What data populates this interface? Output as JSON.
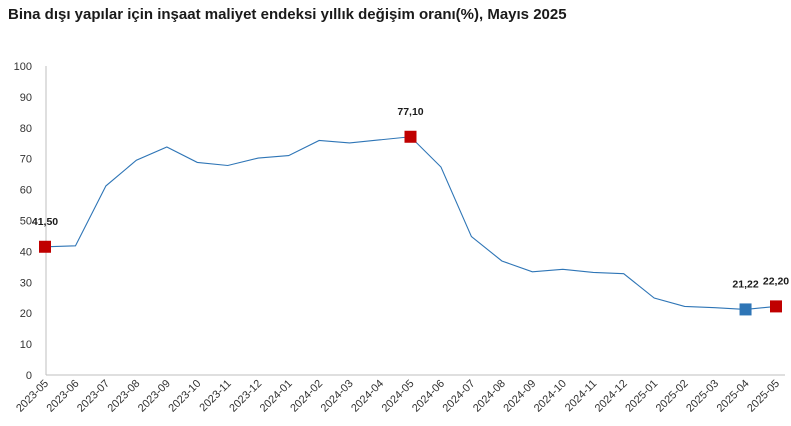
{
  "chart_data": {
    "type": "line",
    "title": "Bina dışı yapılar için inşaat maliyet endeksi yıllık değişim oranı(%), Mayıs 2025",
    "xlabel": "",
    "ylabel": "",
    "ylim": [
      0,
      100
    ],
    "yticks": [
      "0",
      "10",
      "20",
      "30",
      "40",
      "50",
      "60",
      "70",
      "80",
      "90",
      "100"
    ],
    "grid": false,
    "categories": [
      "2023-05",
      "2023-06",
      "2023-07",
      "2023-08",
      "2023-09",
      "2023-10",
      "2023-11",
      "2023-12",
      "2024-01",
      "2024-02",
      "2024-03",
      "2024-04",
      "2024-05",
      "2024-06",
      "2024-07",
      "2024-08",
      "2024-09",
      "2024-10",
      "2024-11",
      "2024-12",
      "2025-01",
      "2025-02",
      "2025-03",
      "2025-04",
      "2025-05"
    ],
    "series": [
      {
        "values": [
          41.5,
          41.8,
          61.2,
          69.5,
          73.8,
          68.8,
          67.8,
          70.2,
          71.0,
          75.9,
          75.1,
          76.1,
          77.1,
          67.3,
          44.8,
          36.9,
          33.4,
          34.2,
          33.2,
          32.8,
          24.9,
          22.2,
          21.8,
          21.22,
          22.2
        ],
        "color": "#2e75b6"
      }
    ],
    "highlights": [
      {
        "index": 0,
        "label": "41,50",
        "color": "#c00000"
      },
      {
        "index": 12,
        "label": "77,10",
        "color": "#c00000"
      },
      {
        "index": 23,
        "label": "21,22",
        "color": "#2e75b6"
      },
      {
        "index": 24,
        "label": "22,20",
        "color": "#c00000"
      }
    ]
  }
}
